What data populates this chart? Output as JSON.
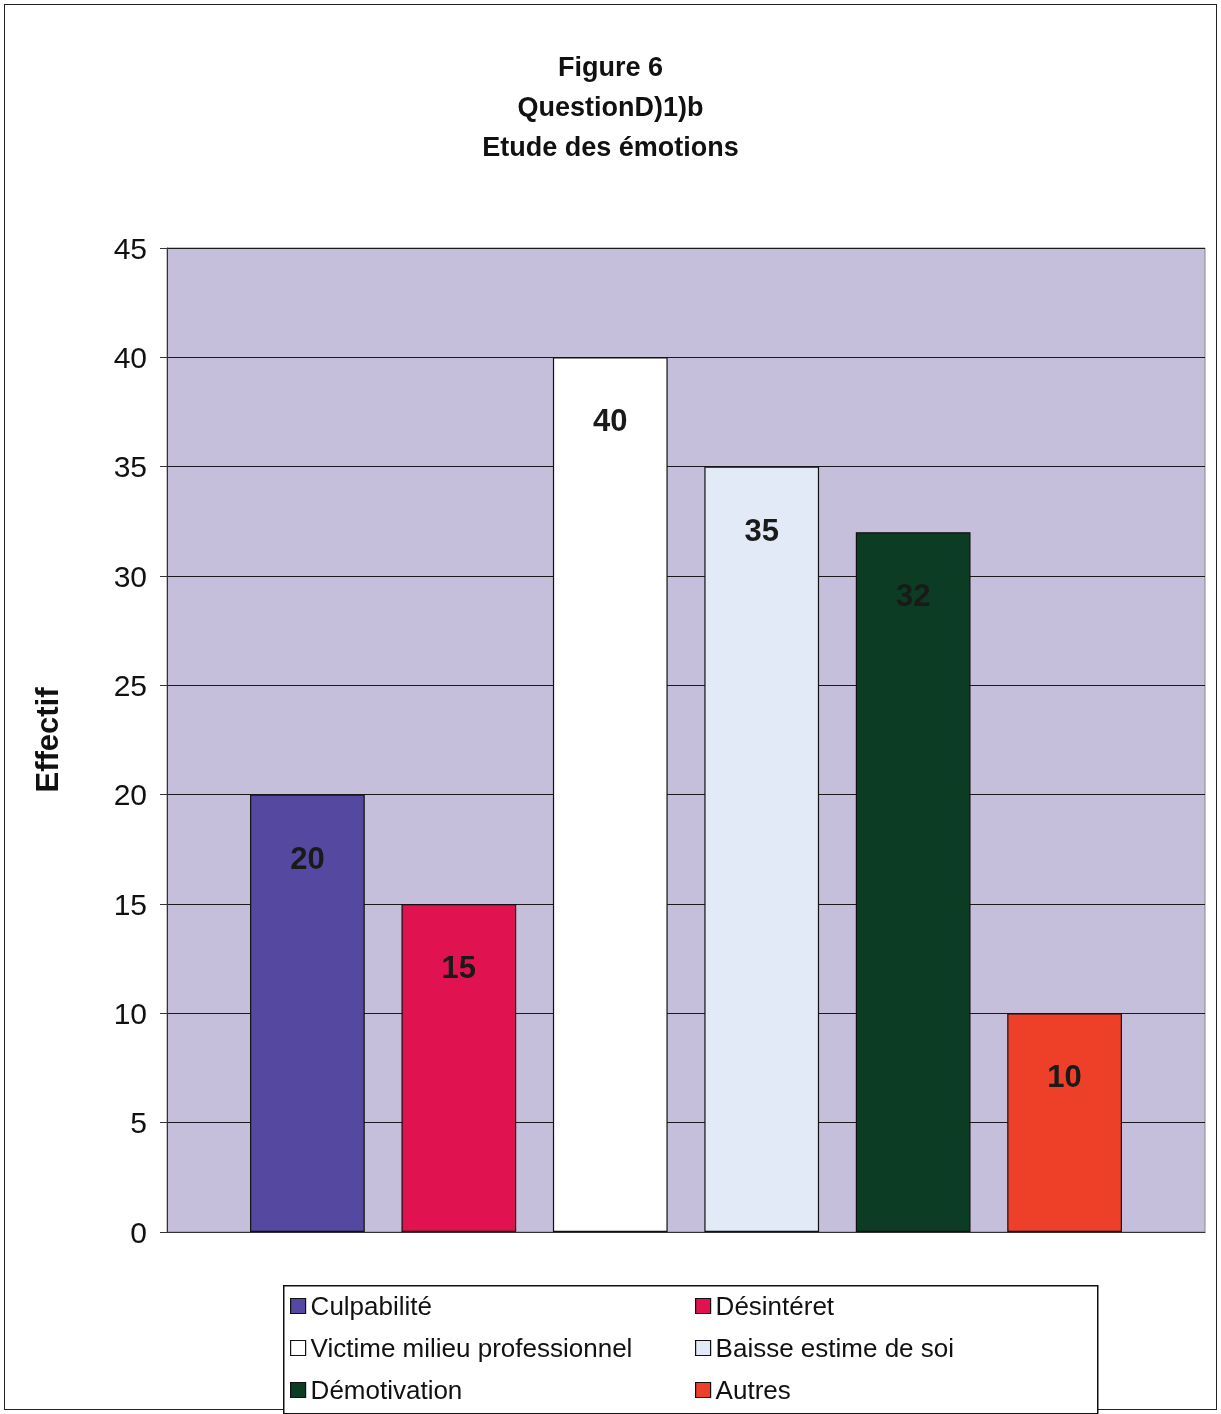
{
  "chart_data": {
    "type": "bar",
    "title": "Figure 6\nQuestionD)1)b\nEtude des émotions",
    "ylabel": "Effectif",
    "categories": [
      null
    ],
    "series": [
      {
        "name": "Culpabilité",
        "color": "#5548a0",
        "values": [
          20
        ]
      },
      {
        "name": "Désintéret",
        "color": "#e0124f",
        "values": [
          15
        ]
      },
      {
        "name": "Victime milieu professionnel",
        "color": "#ffffff",
        "values": [
          40
        ]
      },
      {
        "name": "Baisse estime de soi",
        "color": "#e2eaf7",
        "values": [
          35
        ]
      },
      {
        "name": "Démotivation",
        "color": "#0c3d24",
        "values": [
          32
        ]
      },
      {
        "name": "Autres",
        "color": "#ee4028",
        "values": [
          10
        ]
      }
    ],
    "ylim": [
      0,
      45
    ],
    "yticks": [
      0,
      5,
      10,
      15,
      20,
      25,
      30,
      35,
      40,
      45
    ],
    "grid": "y",
    "legend": "bottom",
    "data_labels": true,
    "tick_labels": "y"
  }
}
